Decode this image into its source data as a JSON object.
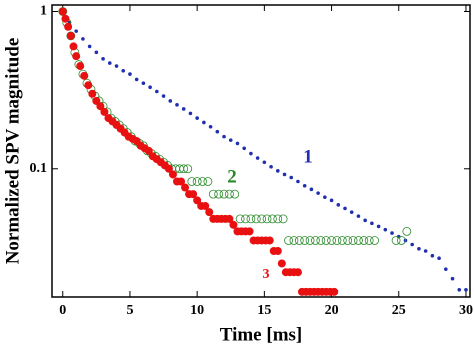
{
  "chart_data": {
    "type": "scatter",
    "xlabel": "Time [ms]",
    "ylabel": "Normalized SPV magnitude",
    "xlim": [
      -0.8,
      30.3
    ],
    "xticks": [
      0,
      5,
      10,
      15,
      20,
      25,
      30
    ],
    "ylim": [
      0.0153,
      1.1
    ],
    "yticks": [
      0.1,
      1
    ],
    "log_y": true,
    "series": [
      {
        "name": "1",
        "color": "#1f2fb0",
        "marker": "filled-small",
        "x": [
          0,
          0.5,
          1,
          1.5,
          2,
          2.5,
          3,
          3.5,
          4,
          4.5,
          5,
          5.5,
          6,
          6.5,
          7,
          7.5,
          8,
          8.5,
          9,
          9.5,
          10,
          10.5,
          11,
          11.5,
          12,
          12.5,
          13,
          13.5,
          14,
          14.5,
          15,
          15.5,
          16,
          16.5,
          17,
          17.5,
          18,
          18.5,
          19,
          19.5,
          20,
          20.5,
          21,
          21.5,
          22,
          22.5,
          23,
          23.5,
          24,
          24.5,
          25,
          25.5,
          26,
          26.5,
          27,
          27.5,
          28,
          28.5,
          29,
          29.5,
          30
        ],
        "values": [
          1,
          0.85,
          0.75,
          0.67,
          0.6,
          0.55,
          0.5,
          0.47,
          0.45,
          0.42,
          0.4,
          0.37,
          0.35,
          0.33,
          0.31,
          0.29,
          0.27,
          0.255,
          0.24,
          0.225,
          0.21,
          0.197,
          0.185,
          0.172,
          0.16,
          0.152,
          0.145,
          0.135,
          0.125,
          0.117,
          0.11,
          0.103,
          0.097,
          0.092,
          0.088,
          0.083,
          0.078,
          0.074,
          0.07,
          0.066,
          0.063,
          0.059,
          0.056,
          0.053,
          0.05,
          0.047,
          0.045,
          0.043,
          0.041,
          0.039,
          0.037,
          0.035,
          0.033,
          0.031,
          0.03,
          0.028,
          0.027,
          0.023,
          0.02,
          0.017,
          0.017
        ]
      },
      {
        "name": "2",
        "color": "#2a8a2a",
        "marker": "open",
        "x": [
          0,
          0.3,
          0.6,
          0.9,
          1.2,
          1.5,
          1.8,
          2.1,
          2.4,
          2.7,
          3,
          3.3,
          3.6,
          3.9,
          4.2,
          4.5,
          4.8,
          5.1,
          5.4,
          5.7,
          6,
          6.3,
          6.6,
          6.9,
          7.2,
          7.5,
          7.8,
          8.1,
          8.4,
          8.7,
          9,
          9.3,
          9.6,
          10,
          10.4,
          10.8,
          11.2,
          11.6,
          12,
          12.4,
          12.8,
          13.2,
          13.6,
          14,
          14.4,
          14.8,
          15.2,
          15.6,
          16,
          16.4,
          16.8,
          17.2,
          17.6,
          18,
          18.4,
          18.8,
          19.2,
          19.6,
          20,
          20.4,
          20.8,
          21.2,
          21.6,
          22,
          22.4,
          22.8,
          23.2,
          24.8,
          25.2,
          25.6
        ],
        "values": [
          1,
          0.85,
          0.7,
          0.55,
          0.46,
          0.4,
          0.35,
          0.32,
          0.29,
          0.27,
          0.25,
          0.23,
          0.21,
          0.2,
          0.19,
          0.18,
          0.17,
          0.16,
          0.15,
          0.145,
          0.14,
          0.13,
          0.125,
          0.12,
          0.115,
          0.11,
          0.105,
          0.1,
          0.1,
          0.1,
          0.1,
          0.1,
          0.083,
          0.083,
          0.083,
          0.083,
          0.069,
          0.069,
          0.069,
          0.069,
          0.069,
          0.048,
          0.048,
          0.048,
          0.048,
          0.048,
          0.048,
          0.048,
          0.048,
          0.048,
          0.035,
          0.035,
          0.035,
          0.035,
          0.035,
          0.035,
          0.035,
          0.035,
          0.035,
          0.035,
          0.035,
          0.035,
          0.035,
          0.035,
          0.035,
          0.035,
          0.035,
          0.035,
          0.035,
          0.04
        ]
      },
      {
        "name": "3",
        "color": "#e81010",
        "marker": "filled",
        "x": [
          0,
          0.2,
          0.4,
          0.6,
          0.8,
          1,
          1.3,
          1.6,
          1.9,
          2.2,
          2.5,
          2.8,
          3.1,
          3.4,
          3.7,
          4,
          4.3,
          4.6,
          4.9,
          5.2,
          5.5,
          5.8,
          6.1,
          6.4,
          6.7,
          7,
          7.3,
          7.6,
          7.9,
          8.2,
          8.5,
          8.8,
          9.1,
          9.4,
          9.7,
          10,
          10.3,
          10.6,
          10.9,
          11.2,
          11.5,
          11.8,
          12.1,
          12.4,
          12.7,
          13,
          13.3,
          13.6,
          13.9,
          14.2,
          14.5,
          14.8,
          15.1,
          15.4,
          15.7,
          16,
          16.3,
          16.6,
          16.9,
          17.2,
          17.5,
          17.8,
          18.1,
          18.4,
          18.7,
          19,
          19.3,
          19.6,
          19.9,
          20.2
        ],
        "values": [
          1,
          0.9,
          0.8,
          0.7,
          0.6,
          0.52,
          0.45,
          0.39,
          0.34,
          0.3,
          0.27,
          0.25,
          0.23,
          0.21,
          0.2,
          0.19,
          0.18,
          0.17,
          0.16,
          0.155,
          0.15,
          0.14,
          0.135,
          0.13,
          0.12,
          0.115,
          0.11,
          0.105,
          0.1,
          0.092,
          0.083,
          0.083,
          0.076,
          0.069,
          0.069,
          0.063,
          0.058,
          0.058,
          0.053,
          0.048,
          0.048,
          0.048,
          0.048,
          0.048,
          0.044,
          0.04,
          0.04,
          0.04,
          0.04,
          0.035,
          0.035,
          0.035,
          0.035,
          0.035,
          0.03,
          0.03,
          0.025,
          0.022,
          0.022,
          0.022,
          0.022,
          0.0165,
          0.0165,
          0.0165,
          0.0165,
          0.0165,
          0.0165,
          0.0165,
          0.0165,
          0.0165
        ]
      }
    ]
  }
}
